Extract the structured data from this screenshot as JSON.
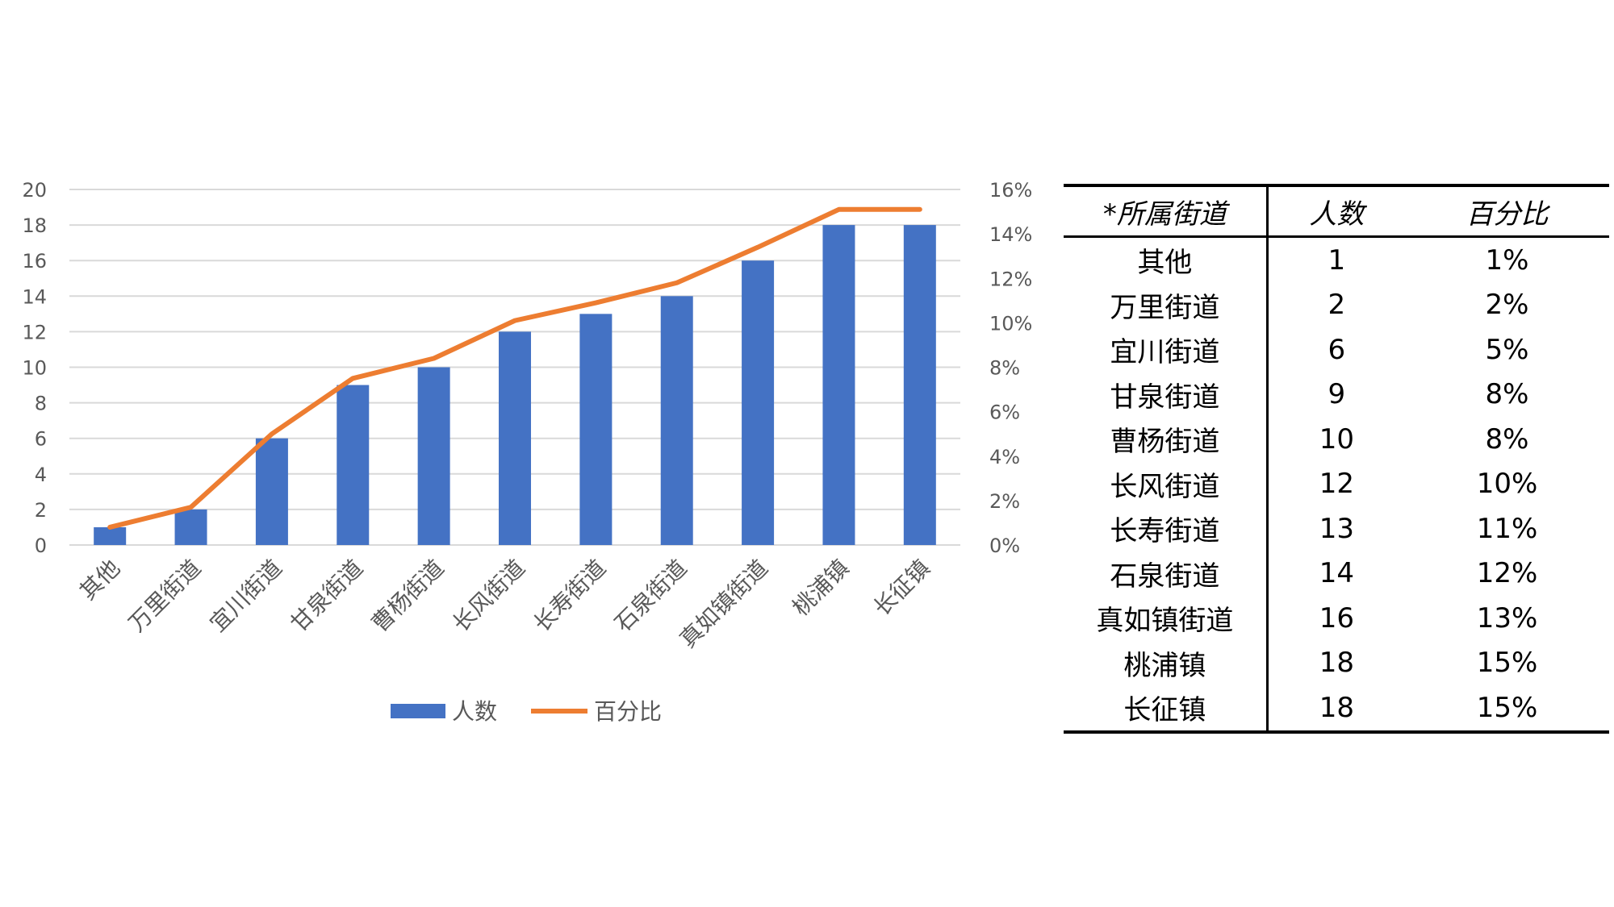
{
  "chart_data": {
    "type": "bar",
    "categories": [
      "其他",
      "万里街道",
      "宜川街道",
      "甘泉街道",
      "曹杨街道",
      "长风街道",
      "长寿街道",
      "石泉街道",
      "真如镇街道",
      "桃浦镇",
      "长征镇"
    ],
    "series": [
      {
        "name": "人数",
        "type": "bar",
        "axis": "left",
        "values": [
          1,
          2,
          6,
          9,
          10,
          12,
          13,
          14,
          16,
          18,
          18
        ],
        "color": "#4472C4"
      },
      {
        "name": "百分比",
        "type": "line",
        "axis": "right",
        "values": [
          0.8,
          1.7,
          5.0,
          7.5,
          8.4,
          10.1,
          10.9,
          11.8,
          13.4,
          15.1,
          15.1
        ],
        "color": "#ED7D31"
      }
    ],
    "y_left": {
      "min": 0,
      "max": 20,
      "ticks": [
        "0",
        "2",
        "4",
        "6",
        "8",
        "10",
        "12",
        "14",
        "16",
        "18",
        "20"
      ]
    },
    "y_right": {
      "min": 0,
      "max": 16,
      "ticks": [
        "0%",
        "2%",
        "4%",
        "6%",
        "8%",
        "10%",
        "12%",
        "14%",
        "16%"
      ]
    },
    "grid": true,
    "legend": "bottom",
    "gridColor": "#d9d9d9",
    "textColor": "#595959"
  },
  "table": {
    "headers": [
      "*所属街道",
      "人数",
      "百分比"
    ],
    "rows": [
      [
        "其他",
        "1",
        "1%"
      ],
      [
        "万里街道",
        "2",
        "2%"
      ],
      [
        "宜川街道",
        "6",
        "5%"
      ],
      [
        "甘泉街道",
        "9",
        "8%"
      ],
      [
        "曹杨街道",
        "10",
        "8%"
      ],
      [
        "长风街道",
        "12",
        "10%"
      ],
      [
        "长寿街道",
        "13",
        "11%"
      ],
      [
        "石泉街道",
        "14",
        "12%"
      ],
      [
        "真如镇街道",
        "16",
        "13%"
      ],
      [
        "桃浦镇",
        "18",
        "15%"
      ],
      [
        "长征镇",
        "18",
        "15%"
      ]
    ]
  }
}
